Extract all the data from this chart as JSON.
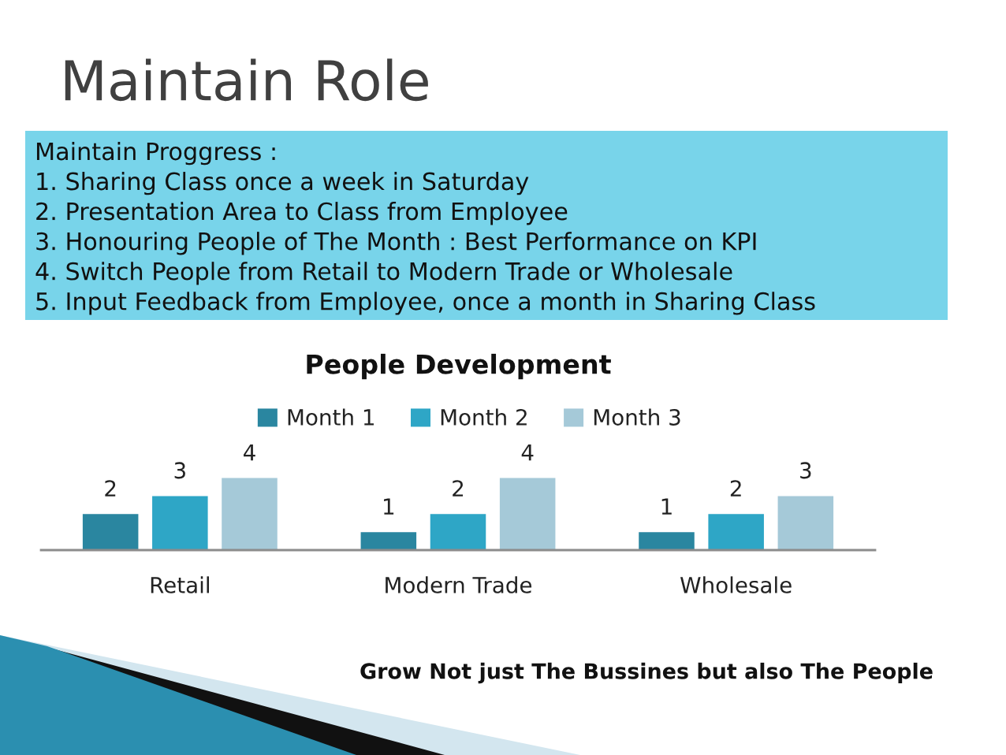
{
  "chart_data": {
    "type": "bar",
    "title": "People Development",
    "categories": [
      "Retail",
      "Modern Trade",
      "Wholesale"
    ],
    "series": [
      {
        "name": "Month 1",
        "color": "#2a86a0",
        "values": [
          2,
          1,
          1
        ]
      },
      {
        "name": "Month 2",
        "color": "#2ea6c6",
        "values": [
          3,
          2,
          2
        ]
      },
      {
        "name": "Month 3",
        "color": "#a5c9d8",
        "values": [
          4,
          4,
          3
        ]
      }
    ],
    "tick_labels": "x",
    "data_labels": true,
    "legend": "top",
    "annotations": [
      "Maintain Role",
      "Maintain Proggress :\n1. Sharing Class once a week in Saturday\n2. Presentation Area to Class from Employee\n3. Honouring People of The Month : Best Performance on KPI\n4. Switch People from Retail to Modern Trade or Wholesale\n5. Input Feedback from Employee, once a month in Sharing Class",
      "Grow Not just The Bussines but also The People"
    ]
  }
}
